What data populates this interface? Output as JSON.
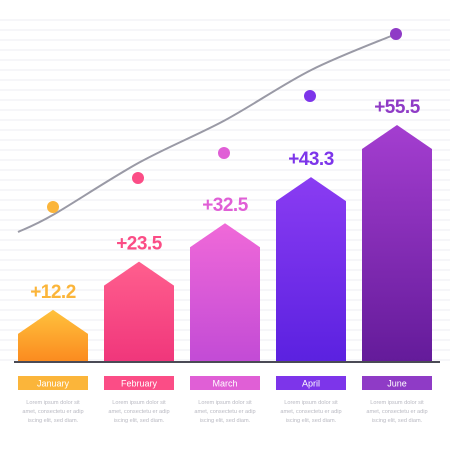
{
  "chart_data": {
    "type": "bar",
    "categories": [
      "January",
      "February",
      "March",
      "April",
      "June"
    ],
    "values": [
      12.2,
      23.5,
      32.5,
      43.3,
      55.5
    ],
    "value_labels": [
      "+12.2",
      "+23.5",
      "+32.5",
      "+43.3",
      "+55.5"
    ],
    "trend_line": true,
    "grid": true,
    "colors": {
      "bar_tops": [
        "#ffc23d",
        "#ff5f8e",
        "#f069d8",
        "#8a3cf2",
        "#a43ed0"
      ],
      "bar_bottoms": [
        "#fb8a1f",
        "#f0367b",
        "#c24bd6",
        "#5b21e0",
        "#641b9a"
      ],
      "labels": [
        "#fbb53a",
        "#fb4d86",
        "#e05fd6",
        "#7d35ea",
        "#8f3bc6"
      ],
      "axis": "#4a4a55",
      "trend": "#9a9aa6",
      "grid": "#ececf3"
    },
    "descriptions": [
      [
        "Lorem ipsum dolor sit",
        "amet, consectetu er adip",
        "iscing elit, sed diam."
      ],
      [
        "Lorem ipsum dolor sit",
        "amet, consectetu er adip",
        "iscing elit, sed diam."
      ],
      [
        "Lorem ipsum dolor sit",
        "amet, consectetu er adip",
        "iscing elit, sed diam."
      ],
      [
        "Lorem ipsum dolor sit",
        "amet, consectetu er adip",
        "iscing elit, sed diam."
      ],
      [
        "Lorem ipsum dolor sit",
        "amet, consectetu er adip",
        "iscing elit, sed diam."
      ]
    ]
  }
}
